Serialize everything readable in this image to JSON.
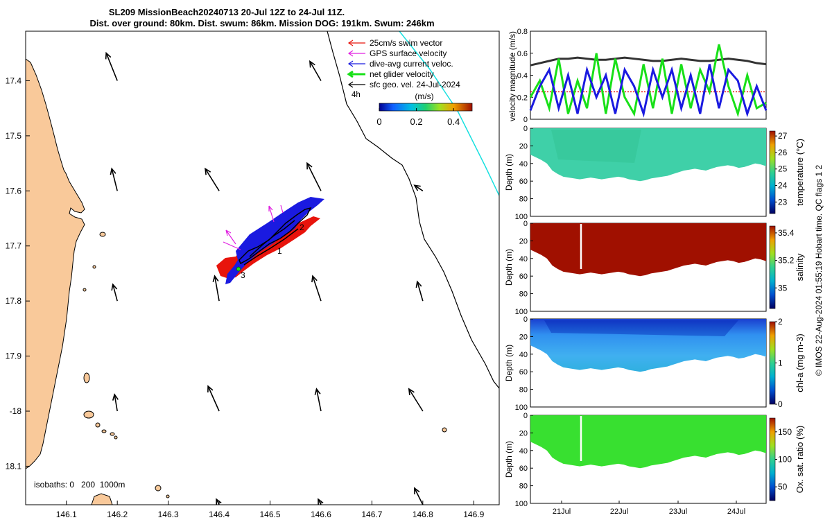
{
  "title": {
    "line1": "SL209 MissionBeach20240713 20-Jul 12Z to 24-Jul 11Z.",
    "line2": "Dist. over ground: 80km. Dist. swum: 86km. Mission DOG: 191km. Swum: 246km"
  },
  "colors": {
    "land": "#f9c99a",
    "swim_vector": "#e8140c",
    "gps_velocity": "#e020e0",
    "dive_avg": "#1a1ae0",
    "net_velocity": "#18e018",
    "sfc_geo": "#000000",
    "cyan_line": "#19e0e0",
    "temperature_fill": "#3fd0a8",
    "salinity_fill": "#a01000",
    "oxygen_fill": "#38e030"
  },
  "chart_data": [
    {
      "type": "map",
      "name": "glider-track-map",
      "xlim": [
        146.02,
        146.95
      ],
      "ylim": [
        -18.17,
        -17.31
      ],
      "x_ticks": [
        146.1,
        146.2,
        146.3,
        146.4,
        146.5,
        146.6,
        146.7,
        146.8,
        146.9
      ],
      "x_tick_labels": [
        "146.1",
        "146.2",
        "146.3",
        "146.4",
        "146.5",
        "146.6",
        "146.7",
        "146.8",
        "146.9"
      ],
      "y_ticks": [
        -17.4,
        -17.5,
        -17.6,
        -17.7,
        -17.8,
        -17.9,
        -18.0,
        -18.1
      ],
      "y_tick_labels": [
        "17.4",
        "17.5",
        "17.6",
        "17.7",
        "17.8",
        "17.9",
        "-18",
        "18.1"
      ],
      "legend": [
        {
          "label": "25cm/s swim vector",
          "color": "#e8140c"
        },
        {
          "label": "GPS surface velocity",
          "color": "#e020e0"
        },
        {
          "label": "dive-avg current veloc.",
          "color": "#1a1ae0"
        },
        {
          "label": "net glider velocity",
          "color": "#18e018"
        },
        {
          "label": "sfc geo. vel. 24-Jul-2024",
          "color": "#000000"
        }
      ],
      "legend_note": "4h",
      "colorbar": {
        "label": "(m/s)",
        "range": [
          0,
          0.5
        ],
        "tick_labels": [
          "0",
          "0.2",
          "0.4"
        ]
      },
      "isobaths_label": "isobaths: 0   200  1000m",
      "track_labels": [
        "1",
        "2",
        "3"
      ],
      "geo_arrows": [
        {
          "lon": 146.2,
          "lat": -17.4,
          "u": -0.2,
          "v": 0.5
        },
        {
          "lon": 146.6,
          "lat": -17.4,
          "u": -0.2,
          "v": 0.35
        },
        {
          "lon": 146.2,
          "lat": -17.6,
          "u": -0.1,
          "v": 0.4
        },
        {
          "lon": 146.4,
          "lat": -17.6,
          "u": -0.25,
          "v": 0.4
        },
        {
          "lon": 146.6,
          "lat": -17.6,
          "u": -0.25,
          "v": 0.5
        },
        {
          "lon": 146.8,
          "lat": -17.6,
          "u": -0.15,
          "v": 0.1
        },
        {
          "lon": 146.2,
          "lat": -17.8,
          "u": -0.08,
          "v": 0.3
        },
        {
          "lon": 146.4,
          "lat": -17.8,
          "u": -0.08,
          "v": 0.45
        },
        {
          "lon": 146.6,
          "lat": -17.8,
          "u": -0.15,
          "v": 0.45
        },
        {
          "lon": 146.8,
          "lat": -17.8,
          "u": -0.1,
          "v": 0.35
        },
        {
          "lon": 146.2,
          "lat": -18.0,
          "u": -0.05,
          "v": 0.3
        },
        {
          "lon": 146.4,
          "lat": -18.0,
          "u": -0.2,
          "v": 0.45
        },
        {
          "lon": 146.6,
          "lat": -18.0,
          "u": -0.08,
          "v": 0.4
        },
        {
          "lon": 146.8,
          "lat": -18.0,
          "u": -0.25,
          "v": 0.4
        },
        {
          "lon": 146.4,
          "lat": -18.17,
          "u": -0.05,
          "v": 0.1
        },
        {
          "lon": 146.6,
          "lat": -18.17,
          "u": -0.05,
          "v": 0.1
        },
        {
          "lon": 146.8,
          "lat": -18.17,
          "u": -0.15,
          "v": 0.3
        }
      ]
    },
    {
      "type": "line",
      "name": "velocity-magnitude",
      "ylabel": "velocity magnitude (m/s)",
      "ylim": [
        0,
        0.8
      ],
      "y_ticks": [
        0,
        0.2,
        0.4,
        0.6,
        0.8
      ],
      "y_tick_labels": [
        "0",
        "0.2",
        "0.4",
        "0.6",
        "0.8"
      ],
      "xlim": [
        0,
        1
      ],
      "series": [
        {
          "name": "sfc geo. vel.",
          "color": "#333333",
          "values": [
            0.49,
            0.51,
            0.53,
            0.55,
            0.55,
            0.56,
            0.55,
            0.54,
            0.54,
            0.55,
            0.56,
            0.55,
            0.54,
            0.53,
            0.53,
            0.54,
            0.55,
            0.54,
            0.53,
            0.53,
            0.54,
            0.55,
            0.54,
            0.53,
            0.51,
            0.5
          ]
        },
        {
          "name": "swim vector",
          "color": "#e8140c",
          "values": [
            0.25,
            0.25,
            0.25,
            0.25,
            0.25,
            0.25,
            0.25,
            0.25,
            0.25,
            0.25,
            0.25,
            0.25,
            0.25,
            0.25,
            0.25,
            0.25,
            0.25,
            0.25,
            0.25,
            0.25,
            0.25,
            0.25,
            0.25,
            0.25,
            0.25,
            0.25
          ]
        },
        {
          "name": "net glider velocity",
          "color": "#18e018",
          "values": [
            0.2,
            0.35,
            0.1,
            0.55,
            0.05,
            0.35,
            0.1,
            0.6,
            0.05,
            0.55,
            0.2,
            0.05,
            0.5,
            0.1,
            0.55,
            0.05,
            0.5,
            0.1,
            0.45,
            0.25,
            0.68,
            0.3,
            0.05,
            0.4,
            0.1,
            0.15
          ]
        },
        {
          "name": "dive-avg current",
          "color": "#1a1ae0",
          "values": [
            0.08,
            0.3,
            0.45,
            0.1,
            0.4,
            0.05,
            0.45,
            0.2,
            0.4,
            0.05,
            0.45,
            0.3,
            0.05,
            0.45,
            0.2,
            0.45,
            0.1,
            0.4,
            0.05,
            0.5,
            0.1,
            0.45,
            0.35,
            0.05,
            0.3,
            0.08
          ]
        }
      ]
    },
    {
      "type": "heatmap",
      "name": "temperature-section",
      "ylabel": "Depth (m)",
      "ylim": [
        100,
        0
      ],
      "y_tick_labels": [
        "0",
        "20",
        "40",
        "60",
        "80",
        "100"
      ],
      "colorbar_label": "temperature (°C)",
      "colorbar_range": [
        22.3,
        27.3
      ],
      "colorbar_ticks": [
        "27",
        "26",
        "25",
        "24",
        "23"
      ],
      "typical_value": 25.2
    },
    {
      "type": "heatmap",
      "name": "salinity-section",
      "ylabel": "Depth (m)",
      "ylim": [
        100,
        0
      ],
      "y_tick_labels": [
        "0",
        "20",
        "40",
        "60",
        "80",
        "100"
      ],
      "colorbar_label": "salinity",
      "colorbar_range": [
        34.85,
        35.45
      ],
      "colorbar_ticks": [
        "35.4",
        "35.2",
        "35"
      ],
      "typical_value": 35.42
    },
    {
      "type": "heatmap",
      "name": "chlorophyll-section",
      "ylabel": "Depth (m)",
      "ylim": [
        100,
        0
      ],
      "y_tick_labels": [
        "0",
        "20",
        "40",
        "60",
        "80",
        "100"
      ],
      "colorbar_label": "chl-a (mg m-3)",
      "colorbar_range": [
        0,
        2
      ],
      "colorbar_ticks": [
        "2",
        "1",
        "0"
      ],
      "typical_value": 0.4
    },
    {
      "type": "heatmap",
      "name": "oxygen-section",
      "ylabel": "Depth (m)",
      "ylim": [
        100,
        0
      ],
      "y_tick_labels": [
        "0",
        "20",
        "40",
        "60",
        "80",
        "100"
      ],
      "colorbar_label": "Ox. sat. ratio (%)",
      "colorbar_range": [
        25,
        175
      ],
      "colorbar_ticks": [
        "150",
        "100",
        "50"
      ],
      "typical_value": 100
    }
  ],
  "time_axis": {
    "tick_labels": [
      "21Jul",
      "22Jul",
      "23Jul",
      "24Jul"
    ]
  },
  "bottom_depth_m": [
    30,
    33,
    36,
    40,
    48,
    52,
    55,
    56,
    57,
    58,
    57,
    56,
    57,
    58,
    57,
    56,
    55,
    56,
    58,
    59,
    60,
    59,
    57,
    56,
    55,
    54,
    52,
    50,
    48,
    47,
    46,
    47,
    48,
    46,
    44,
    43,
    42,
    43,
    45,
    44,
    42,
    40,
    41,
    43
  ],
  "side_note": "© IMOS 22-Aug-2024 01:55:19 Hobart time. QC flags 1  2"
}
